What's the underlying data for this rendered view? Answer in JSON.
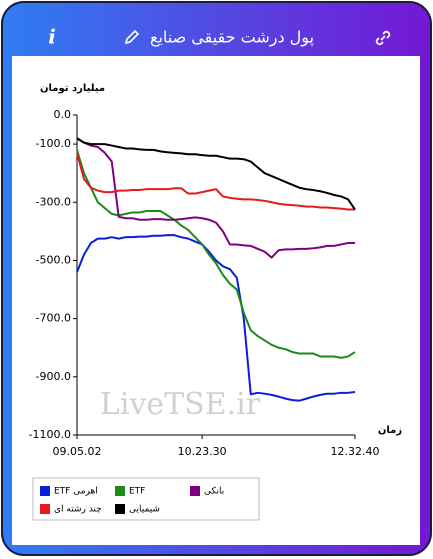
{
  "header": {
    "title": "پول درشت حقیقی صنایع",
    "icon_text": "i"
  },
  "chart_data": {
    "type": "line",
    "y_label": "میلیارد تومان",
    "x_label": "زمان",
    "watermark": "LiveTSE.ir",
    "categories": [
      "09.05.02",
      null,
      null,
      null,
      null,
      null,
      null,
      null,
      null,
      null,
      null,
      null,
      null,
      null,
      null,
      null,
      null,
      null,
      "10.23.30",
      null,
      null,
      null,
      null,
      null,
      null,
      null,
      null,
      null,
      null,
      null,
      null,
      null,
      null,
      null,
      null,
      null,
      null,
      null,
      null,
      null,
      "12.32.40"
    ],
    "ylim": [
      -1100,
      0
    ],
    "yticks": [
      {
        "value": 0,
        "label": "0.0"
      },
      {
        "value": -100,
        "label": "-100.0"
      },
      {
        "value": -300,
        "label": "-300.0"
      },
      {
        "value": -500,
        "label": "-500.0"
      },
      {
        "value": -700,
        "label": "-700.0"
      },
      {
        "value": -900,
        "label": "-900.0"
      },
      {
        "value": -1100,
        "label": "-1100.0"
      }
    ],
    "series": [
      {
        "name": "ETF اهرمی",
        "color": "#0b1fd8",
        "values": [
          -540,
          -480,
          -440,
          -425,
          -425,
          -420,
          -425,
          -420,
          -420,
          -418,
          -418,
          -415,
          -415,
          -413,
          -413,
          -420,
          -425,
          -435,
          -445,
          -470,
          -500,
          -520,
          -530,
          -560,
          -700,
          -960,
          -955,
          -958,
          -962,
          -968,
          -975,
          -980,
          -982,
          -975,
          -968,
          -962,
          -958,
          -958,
          -955,
          -955,
          -952
        ]
      },
      {
        "name": "ETF",
        "color": "#1a8a1a",
        "values": [
          -120,
          -200,
          -250,
          -300,
          -320,
          -340,
          -345,
          -340,
          -335,
          -335,
          -330,
          -330,
          -330,
          -345,
          -360,
          -380,
          -395,
          -420,
          -445,
          -480,
          -510,
          -550,
          -580,
          -600,
          -680,
          -740,
          -760,
          -775,
          -790,
          -800,
          -805,
          -815,
          -820,
          -820,
          -820,
          -830,
          -830,
          -830,
          -835,
          -830,
          -815
        ]
      },
      {
        "name": "بانکی",
        "color": "#800080",
        "values": [
          -80,
          -95,
          -105,
          -110,
          -130,
          -160,
          -350,
          -355,
          -355,
          -360,
          -360,
          -358,
          -358,
          -360,
          -360,
          -358,
          -355,
          -352,
          -355,
          -360,
          -370,
          -400,
          -445,
          -445,
          -448,
          -450,
          -460,
          -470,
          -490,
          -465,
          -462,
          -462,
          -460,
          -460,
          -458,
          -455,
          -450,
          -450,
          -445,
          -440,
          -440
        ]
      },
      {
        "name": "چند رشته ای",
        "color": "#e51a1a",
        "values": [
          -130,
          -220,
          -250,
          -260,
          -265,
          -265,
          -260,
          -260,
          -258,
          -258,
          -255,
          -255,
          -255,
          -255,
          -252,
          -252,
          -270,
          -270,
          -265,
          -260,
          -255,
          -280,
          -285,
          -288,
          -290,
          -290,
          -292,
          -295,
          -300,
          -305,
          -308,
          -310,
          -312,
          -315,
          -315,
          -318,
          -318,
          -320,
          -322,
          -325,
          -325
        ]
      },
      {
        "name": "شیمیایی",
        "color": "#000000",
        "values": [
          -80,
          -95,
          -100,
          -100,
          -100,
          -105,
          -110,
          -115,
          -115,
          -118,
          -120,
          -120,
          -125,
          -128,
          -130,
          -132,
          -135,
          -135,
          -138,
          -140,
          -140,
          -145,
          -150,
          -150,
          -152,
          -160,
          -180,
          -200,
          -210,
          -220,
          -230,
          -240,
          -250,
          -255,
          -258,
          -262,
          -268,
          -275,
          -280,
          -290,
          -325
        ]
      }
    ]
  }
}
